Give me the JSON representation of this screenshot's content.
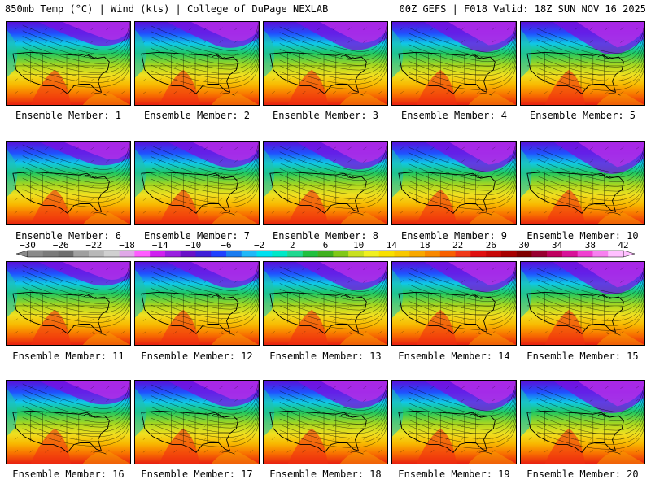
{
  "header": {
    "left": "850mb Temp (°C) | Wind (kts) | College of DuPage NEXLAB",
    "right": "00Z GEFS | F018 Valid: 18Z SUN NOV 16 2025"
  },
  "member_label_prefix": "Ensemble Member: ",
  "members": [
    "1",
    "2",
    "3",
    "4",
    "5",
    "6",
    "7",
    "8",
    "9",
    "10",
    "11",
    "12",
    "13",
    "14",
    "15",
    "16",
    "17",
    "18",
    "19",
    "20"
  ],
  "colorbar": {
    "tick_labels": [
      "−30",
      "−26",
      "−22",
      "−18",
      "−14",
      "−10",
      "−6",
      "−2",
      "2",
      "6",
      "10",
      "14",
      "18",
      "22",
      "26",
      "30",
      "34",
      "38",
      "42"
    ],
    "colors": [
      "#8a8a8a",
      "#7a7a7a",
      "#6e6e6e",
      "#a0a0a0",
      "#b8b8b8",
      "#d0d0d0",
      "#e0a8e8",
      "#ff5cff",
      "#d020f0",
      "#9a20e0",
      "#6a10c8",
      "#4020d8",
      "#2040ff",
      "#1a7cf0",
      "#20b8f8",
      "#00e0f0",
      "#00e8c8",
      "#20d890",
      "#20c040",
      "#40b020",
      "#80c818",
      "#c8e020",
      "#f0f020",
      "#f8e000",
      "#f8c800",
      "#f8a800",
      "#f88800",
      "#f86000",
      "#f03818",
      "#e01010",
      "#c80808",
      "#a80000",
      "#800000",
      "#980030",
      "#c00060",
      "#d81098",
      "#f040d0",
      "#f880f0",
      "#ffc0ff"
    ]
  }
}
